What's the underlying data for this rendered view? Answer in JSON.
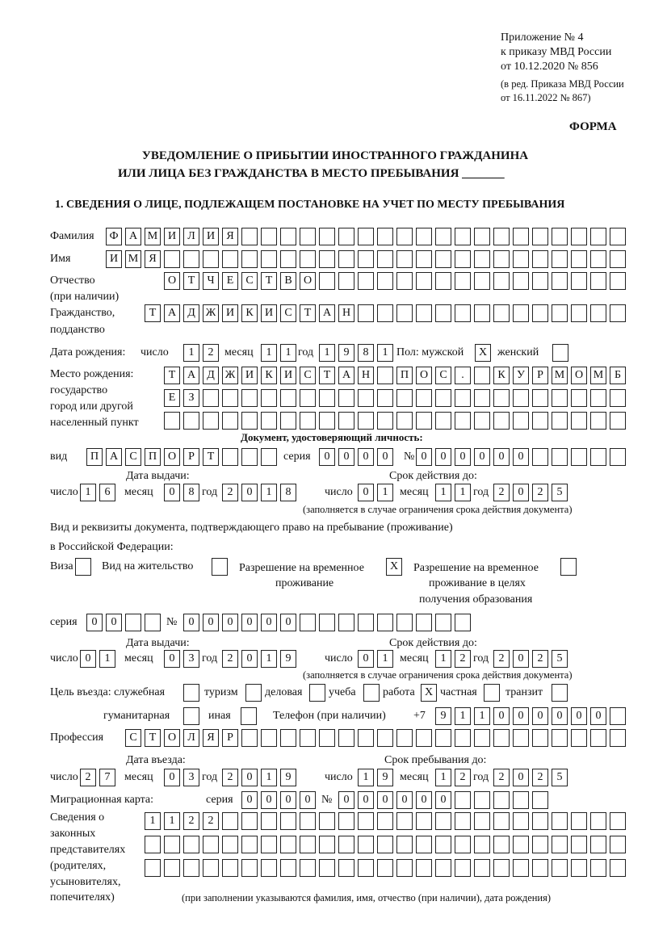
{
  "header": {
    "l1": "Приложение № 4",
    "l2": "к приказу МВД России",
    "l3": "от 10.12.2020 № 856",
    "l4": "(в ред. Приказа МВД России",
    "l5": "от 16.11.2022 № 867)",
    "forma": "ФОРМА"
  },
  "title": {
    "line1": "УВЕДОМЛЕНИЕ О ПРИБЫТИИ ИНОСТРАННОГО ГРАЖДАНИНА",
    "line2": "ИЛИ ЛИЦА БЕЗ ГРАЖДАНСТВА В МЕСТО ПРЕБЫВАНИЯ",
    "blank": "_______"
  },
  "section1": "1. СВЕДЕНИЯ О ЛИЦЕ, ПОДЛЕЖАЩЕМ ПОСТАНОВКЕ НА УЧЕТ ПО МЕСТУ ПРЕБЫВАНИЯ",
  "labels": {
    "surname": "Фамилия",
    "name": "Имя",
    "patronymic": "Отчество",
    "patronymic2": "(при наличии)",
    "citizenship": "Гражданство,",
    "citizenship2": "подданство",
    "birth_date": "Дата рождения:",
    "day": "число",
    "month": "месяц",
    "year": "год",
    "sex": "Пол: мужской",
    "female": "женский",
    "birthplace1": "Место рождения:",
    "birthplace2": "государство",
    "birthplace3": "город или другой",
    "birthplace4": "населенный пункт",
    "id_doc": "Документ, удостоверяющий личность:",
    "kind": "вид",
    "series": "серия",
    "number": "№",
    "issue_date": "Дата выдачи:",
    "valid_until": "Срок действия до:",
    "valid_note": "(заполняется в случае ограничения срока действия документа)",
    "right_doc1": "Вид и реквизиты документа, подтверждающего право на пребывание (проживание)",
    "right_doc2": "в Российской Федерации:",
    "visa": "Виза",
    "residence": "Вид на жительство",
    "trp1": "Разрешение на временное",
    "trp2": "проживание",
    "trpe1": "Разрешение на временное",
    "trpe2": "проживание в целях",
    "trpe3": "получения образования",
    "purpose": "Цель въезда: служебная",
    "tourism": "туризм",
    "business": "деловая",
    "study": "учеба",
    "work": "работа",
    "private": "частная",
    "transit": "транзит",
    "humanitarian": "гуманитарная",
    "other": "иная",
    "phone": "Телефон (при наличии)",
    "phone_prefix": "+7",
    "profession": "Профессия",
    "entry_date": "Дата въезда:",
    "stay_until": "Срок пребывания до:",
    "migration_card": "Миграционная карта:",
    "legal1": "Сведения о",
    "legal2": "законных",
    "legal3": "представителях",
    "legal4": "(родителях,",
    "legal5": "усыновителях,",
    "legal6": "попечителях)",
    "legal_note": "(при заполнении указываются фамилия, имя, отчество (при наличии), дата рождения)"
  },
  "fields": {
    "surname": "ФАМИЛИЯ",
    "name": "ИМЯ",
    "patronymic": "ОТЧЕСТВО",
    "citizenship": "ТАДЖИКИСТАН",
    "birth_day": "12",
    "birth_month": "11",
    "birth_year": "1981",
    "sex_male": "X",
    "sex_female": "",
    "birthplace_1": "ТАДЖИКИСТАН ПОС. КУРМОМБ",
    "birthplace_2": "ЕЗ",
    "birthplace_3": "",
    "id_kind": "ПАСПОРТ",
    "id_series": "0000",
    "id_number": "000000",
    "id_issue_day": "16",
    "id_issue_month": "08",
    "id_issue_year": "2018",
    "id_valid_day": "01",
    "id_valid_month": "11",
    "id_valid_year": "2025",
    "visa": "",
    "residence": "",
    "trp": "X",
    "trp_edu": "",
    "rd_series": "00",
    "rd_number": "000000",
    "rd_issue_day": "01",
    "rd_issue_month": "03",
    "rd_issue_year": "2019",
    "rd_valid_day": "01",
    "rd_valid_month": "12",
    "rd_valid_year": "2025",
    "p_service": "",
    "p_tourism": "",
    "p_business": "",
    "p_study": "",
    "p_work": "X",
    "p_private": "",
    "p_transit": "",
    "p_humanitarian": "",
    "p_other": "",
    "phone": "911000000",
    "profession": "СТОЛЯР",
    "entry_day": "27",
    "entry_month": "03",
    "entry_year": "2019",
    "stay_day": "19",
    "stay_month": "12",
    "stay_year": "2025",
    "mc_series": "0000",
    "mc_number": "000000",
    "legal_1": "1122",
    "legal_2": "",
    "legal_3": ""
  }
}
